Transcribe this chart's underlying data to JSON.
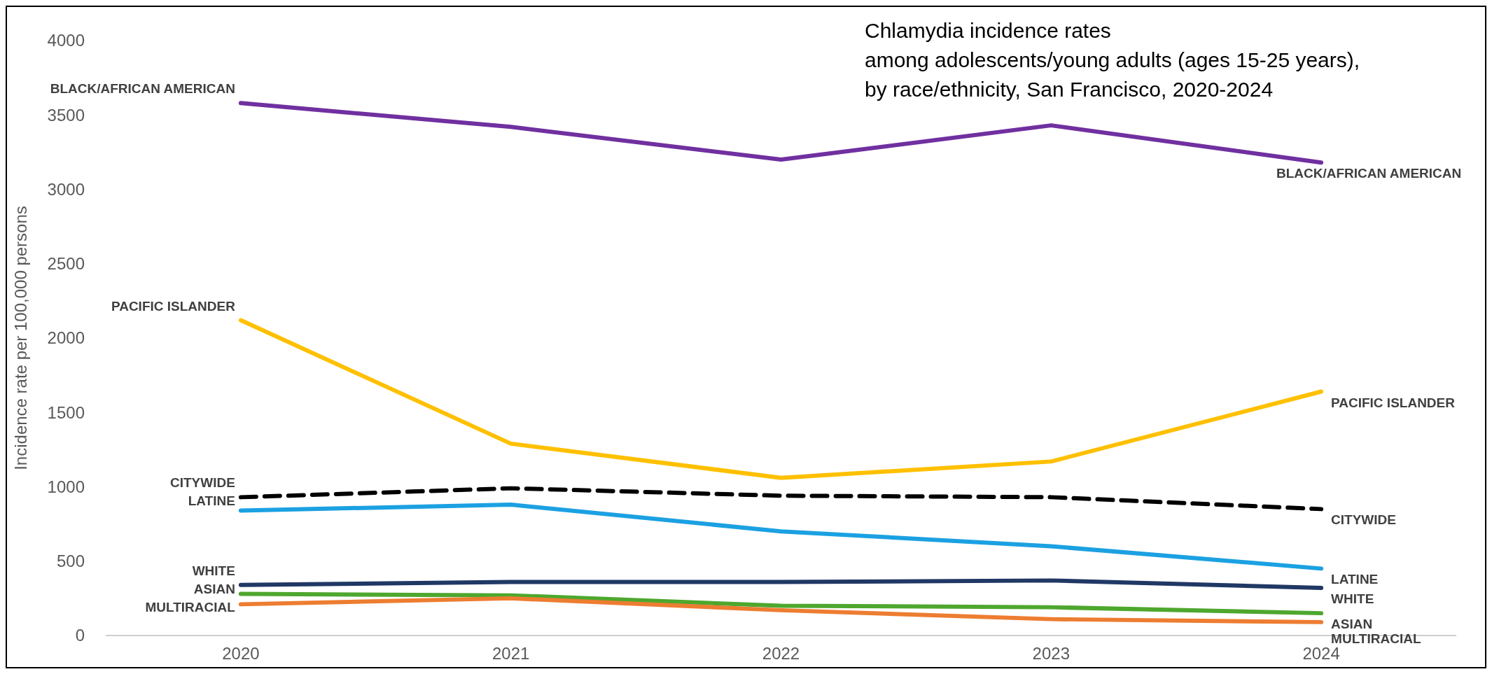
{
  "chart_data": {
    "type": "line",
    "title": "Chlamydia incidence rates\namong adolescents/young adults (ages 15-25 years),\nby race/ethnicity, San Francisco, 2020-2024",
    "ylabel": "Incidence rate per 100,000 persons",
    "categories": [
      "2020",
      "2021",
      "2022",
      "2023",
      "2024"
    ],
    "ylim": [
      0,
      4000
    ],
    "yticks": [
      0,
      500,
      1000,
      1500,
      2000,
      2500,
      3000,
      3500,
      4000
    ],
    "grid": false,
    "marker": "none",
    "series": [
      {
        "name": "BLACK/AFRICAN AMERICAN",
        "color": "#7030a0",
        "values": [
          3580,
          3420,
          3200,
          3430,
          3180
        ]
      },
      {
        "name": "PACIFIC ISLANDER",
        "color": "#ffc000",
        "values": [
          2120,
          1290,
          1060,
          1170,
          1640
        ]
      },
      {
        "name": "CITYWIDE",
        "color": "#000000",
        "line_style": "dashed",
        "values": [
          930,
          990,
          940,
          930,
          850
        ]
      },
      {
        "name": "LATINE",
        "color": "#1ba1e2",
        "values": [
          840,
          880,
          700,
          600,
          450
        ]
      },
      {
        "name": "WHITE",
        "color": "#203864",
        "values": [
          340,
          360,
          360,
          370,
          320
        ]
      },
      {
        "name": "ASIAN",
        "color": "#4ea72e",
        "values": [
          280,
          270,
          200,
          190,
          150
        ]
      },
      {
        "name": "MULTIRACIAL",
        "color": "#ed7d31",
        "values": [
          210,
          250,
          170,
          110,
          90
        ]
      }
    ]
  }
}
